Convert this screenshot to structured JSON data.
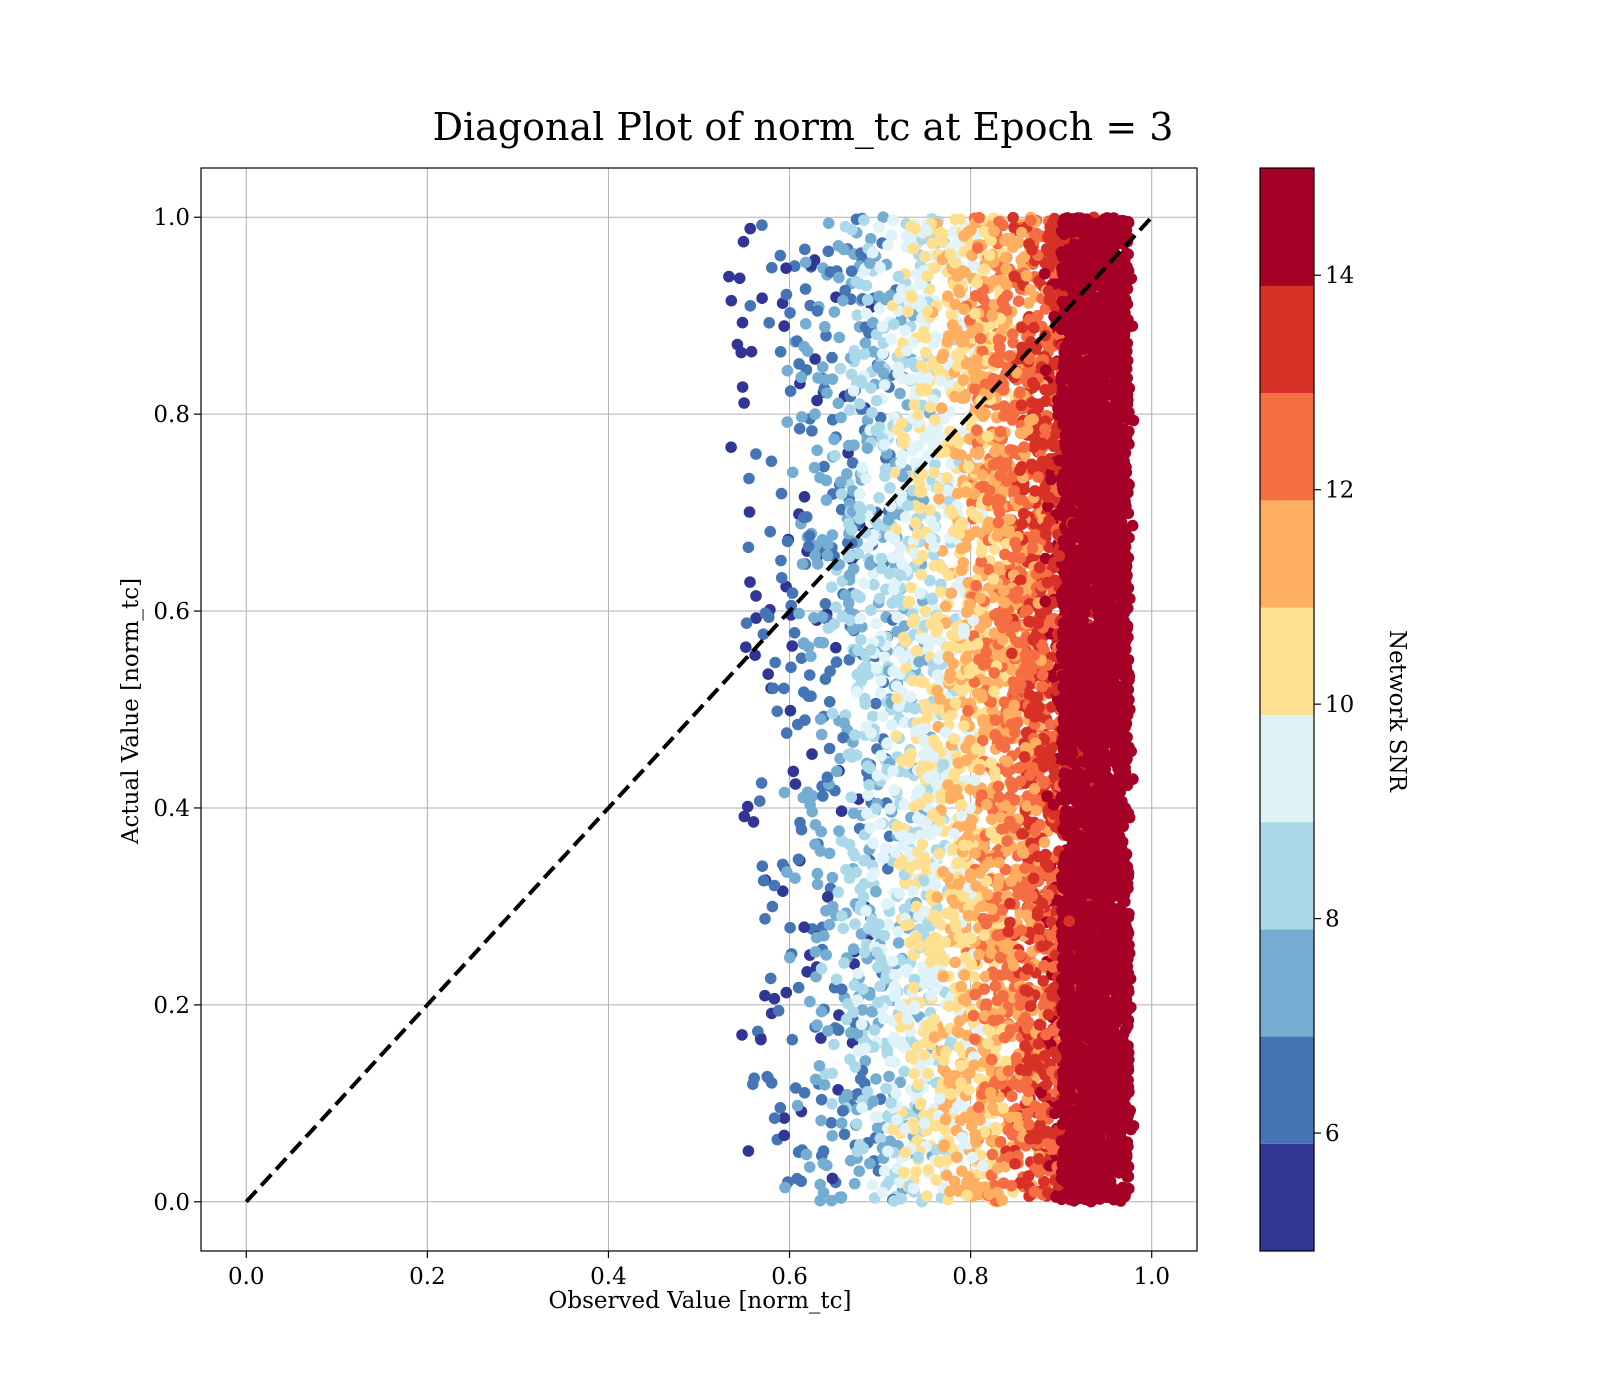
{
  "chart_data": {
    "type": "scatter",
    "title": "Diagonal Plot of norm_tc at Epoch = 3",
    "xlabel": "Observed Value [norm_tc]",
    "ylabel": "Actual Value [norm_tc]",
    "xlim": [
      -0.05,
      1.05
    ],
    "ylim": [
      -0.05,
      1.05
    ],
    "x_ticks": [
      "0.0",
      "0.2",
      "0.4",
      "0.6",
      "0.8",
      "1.0"
    ],
    "y_ticks": [
      "0.0",
      "0.2",
      "0.4",
      "0.6",
      "0.8",
      "1.0"
    ],
    "grid": true,
    "diagonal_line": {
      "from": [
        0,
        0
      ],
      "to": [
        1,
        1
      ],
      "style": "dashed",
      "color": "#000000"
    },
    "points_description": {
      "x_range": [
        0.52,
        0.98
      ],
      "y_range": [
        0.0,
        1.0
      ],
      "count_approx": 6000,
      "trend": "higher SNR corresponds to larger observed value"
    },
    "colorbar": {
      "label": "Network SNR",
      "range": [
        4.9,
        15
      ],
      "ticks": [
        "6",
        "8",
        "10",
        "12",
        "14"
      ],
      "tick_values": [
        6,
        8,
        10,
        12,
        14
      ],
      "bins": [
        {
          "from": 4.9,
          "to": 5.9,
          "color": "#313695"
        },
        {
          "from": 5.9,
          "to": 6.9,
          "color": "#4575b4"
        },
        {
          "from": 6.9,
          "to": 7.9,
          "color": "#74add1"
        },
        {
          "from": 7.9,
          "to": 8.9,
          "color": "#abd9e9"
        },
        {
          "from": 8.9,
          "to": 9.9,
          "color": "#e0f3f8"
        },
        {
          "from": 9.9,
          "to": 10.9,
          "color": "#fee090"
        },
        {
          "from": 10.9,
          "to": 11.9,
          "color": "#fdae61"
        },
        {
          "from": 11.9,
          "to": 12.9,
          "color": "#f46d43"
        },
        {
          "from": 12.9,
          "to": 13.9,
          "color": "#d73027"
        },
        {
          "from": 13.9,
          "to": 15.0,
          "color": "#a50026"
        }
      ]
    }
  }
}
